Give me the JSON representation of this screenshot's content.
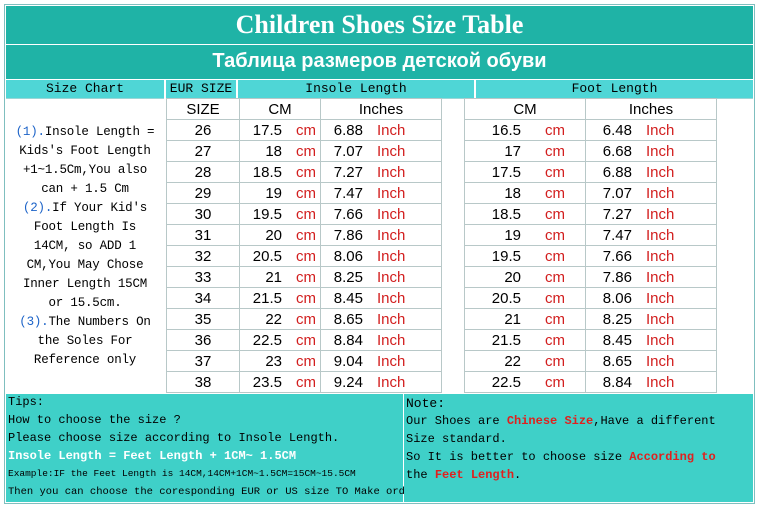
{
  "title_en": "Children Shoes Size Table",
  "title_ru": "Таблица размеров детской обуви",
  "header": {
    "size_chart": "Size Chart",
    "eur_size": "EUR SIZE",
    "insole_length": "Insole Length",
    "foot_length": "Foot Length"
  },
  "subheader": {
    "size": "SIZE",
    "cm": "CM",
    "inches": "Inches"
  },
  "side_notes": [
    {
      "num": "(1).",
      "text": "Insole Length ="
    },
    {
      "num": "",
      "text": "Kids's Foot Length"
    },
    {
      "num": "",
      "text": "+1~1.5Cm,You also"
    },
    {
      "num": "",
      "text": "can + 1.5 Cm"
    },
    {
      "num": "(2).",
      "text": "If Your Kid's"
    },
    {
      "num": "",
      "text": "Foot Length Is"
    },
    {
      "num": "",
      "text": "14CM,  so ADD 1"
    },
    {
      "num": "",
      "text": "CM,You May Chose"
    },
    {
      "num": "",
      "text": "Inner Length 15CM"
    },
    {
      "num": "",
      "text": "or 15.5cm."
    },
    {
      "num": "(3).",
      "text": "The Numbers On"
    },
    {
      "num": "",
      "text": "the Soles For"
    },
    {
      "num": "",
      "text": "Reference only"
    }
  ],
  "units": {
    "cm": "cm",
    "inch": "Inch"
  },
  "rows": [
    {
      "size": "26",
      "insole_cm": "17.5",
      "insole_in": "6.88",
      "foot_cm": "16.5",
      "foot_in": "6.48"
    },
    {
      "size": "27",
      "insole_cm": "18",
      "insole_in": "7.07",
      "foot_cm": "17",
      "foot_in": "6.68"
    },
    {
      "size": "28",
      "insole_cm": "18.5",
      "insole_in": "7.27",
      "foot_cm": "17.5",
      "foot_in": "6.88"
    },
    {
      "size": "29",
      "insole_cm": "19",
      "insole_in": "7.47",
      "foot_cm": "18",
      "foot_in": "7.07"
    },
    {
      "size": "30",
      "insole_cm": "19.5",
      "insole_in": "7.66",
      "foot_cm": "18.5",
      "foot_in": "7.27"
    },
    {
      "size": "31",
      "insole_cm": "20",
      "insole_in": "7.86",
      "foot_cm": "19",
      "foot_in": "7.47"
    },
    {
      "size": "32",
      "insole_cm": "20.5",
      "insole_in": "8.06",
      "foot_cm": "19.5",
      "foot_in": "7.66"
    },
    {
      "size": "33",
      "insole_cm": "21",
      "insole_in": "8.25",
      "foot_cm": "20",
      "foot_in": "7.86"
    },
    {
      "size": "34",
      "insole_cm": "21.5",
      "insole_in": "8.45",
      "foot_cm": "20.5",
      "foot_in": "8.06"
    },
    {
      "size": "35",
      "insole_cm": "22",
      "insole_in": "8.65",
      "foot_cm": "21",
      "foot_in": "8.25"
    },
    {
      "size": "36",
      "insole_cm": "22.5",
      "insole_in": "8.84",
      "foot_cm": "21.5",
      "foot_in": "8.45"
    },
    {
      "size": "37",
      "insole_cm": "23",
      "insole_in": "9.04",
      "foot_cm": "22",
      "foot_in": "8.65"
    },
    {
      "size": "38",
      "insole_cm": "23.5",
      "insole_in": "9.24",
      "foot_cm": "22.5",
      "foot_in": "8.84"
    }
  ],
  "tips": {
    "line1": "Tips:",
    "line2": "How to choose the size ?",
    "line3": "Please choose size according to Insole Length.",
    "line4": "Insole Length = Feet Length + 1CM~ 1.5CM",
    "line5": "Example:IF the Feet Length is 14CM,14CM+1CM~1.5CM=15CM~15.5CM",
    "line6": "Then you can choose the coresponding EUR or US size TO Make order."
  },
  "note": {
    "line1": "Note:",
    "line2a": "Our Shoes are ",
    "line2b": "Chinese Size",
    "line2c": ",Have a different",
    "line3": "Size standard.",
    "line4a": "So It is better to choose size ",
    "line4b": "According to",
    "line5a": "the ",
    "line5b": "Feet Length",
    "line5c": "."
  },
  "colors": {
    "teal": "#1fb3a6",
    "header_cyan": "#4fd6d6",
    "panel": "#3fd0c8",
    "unit_red": "#d21e1e"
  }
}
